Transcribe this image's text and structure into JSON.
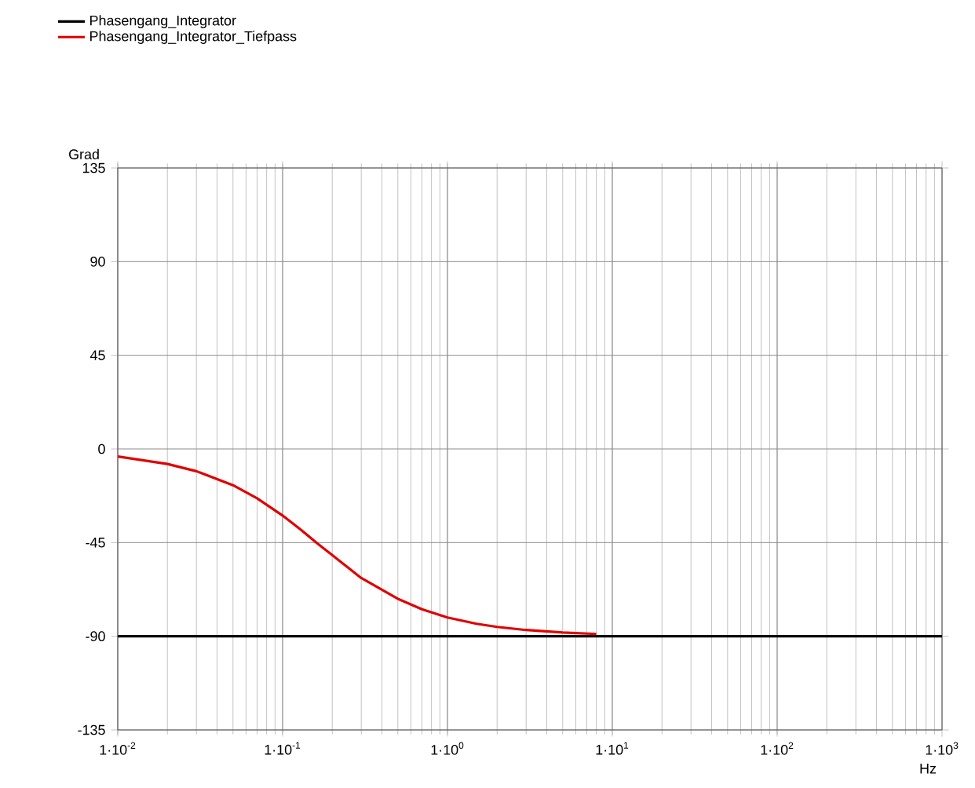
{
  "chart_data": {
    "type": "line",
    "xlabel": "Hz",
    "ylabel": "Grad",
    "log": "x",
    "grid": true,
    "legend": "top left",
    "xlim": [
      0.01,
      1000
    ],
    "ylim": [
      -135,
      135
    ],
    "xticks": [
      {
        "value": 0.01,
        "label": "1·10$^{-2}$"
      },
      {
        "value": 0.1,
        "label": "1·10$^{-1}$"
      },
      {
        "value": 1,
        "label": "1·10$^{0}$"
      },
      {
        "value": 10,
        "label": "1·10$^{1}$"
      },
      {
        "value": 100,
        "label": "1·10$^{2}$"
      },
      {
        "value": 1000,
        "label": "1·10$^{3}$"
      }
    ],
    "yticks": [
      -135,
      -90,
      -45,
      0,
      45,
      90,
      135
    ],
    "series": [
      {
        "name": "Phasengang_Integrator",
        "color": "#000000",
        "x": [
          0.01,
          1000
        ],
        "values": [
          -90,
          -90
        ]
      },
      {
        "name": "Phasengang_Integrator_Tiefpass",
        "color": "#e00000",
        "x": [
          0.01,
          0.02,
          0.03,
          0.05,
          0.07,
          0.1,
          0.13,
          0.16,
          0.2,
          0.3,
          0.5,
          0.7,
          1,
          1.5,
          2,
          3,
          5,
          8
        ],
        "values": [
          -3.6,
          -7.2,
          -10.7,
          -17.4,
          -23.7,
          -32,
          -39,
          -45,
          -51,
          -62,
          -72,
          -77,
          -81,
          -84,
          -85.5,
          -87,
          -88.2,
          -88.9
        ]
      }
    ]
  }
}
